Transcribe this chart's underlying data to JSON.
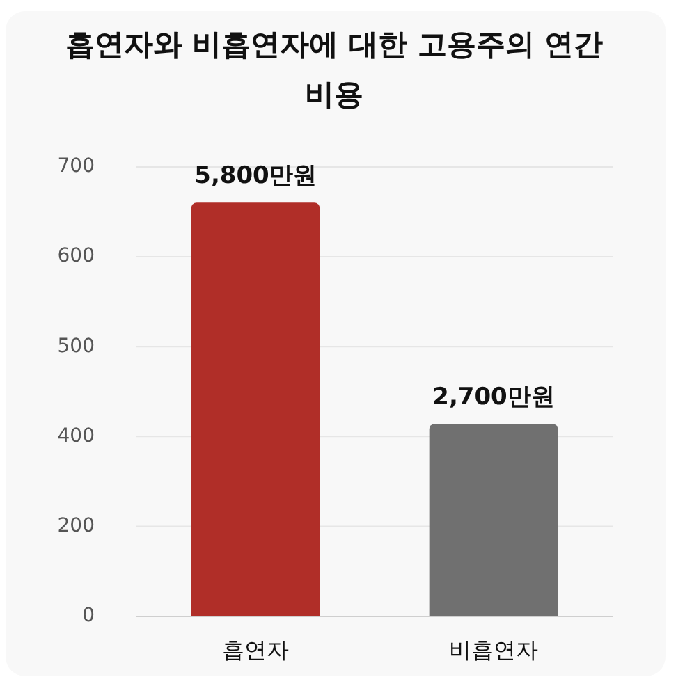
{
  "chart_data": {
    "type": "bar",
    "title": "흡연자와 비흡연자에 대한 고용주의 연간 비용",
    "categories": [
      "흡연자",
      "비흡연자"
    ],
    "values": [
      5800,
      2700
    ],
    "colors": [
      "#b02e28",
      "#707070"
    ],
    "value_labels": [
      "5,800만원",
      "2,700만원"
    ],
    "ylim": [
      0,
      6300
    ],
    "annotations": [
      "0",
      "200",
      "400",
      "500",
      "600",
      "700"
    ],
    "grid": true,
    "legend": false
  }
}
